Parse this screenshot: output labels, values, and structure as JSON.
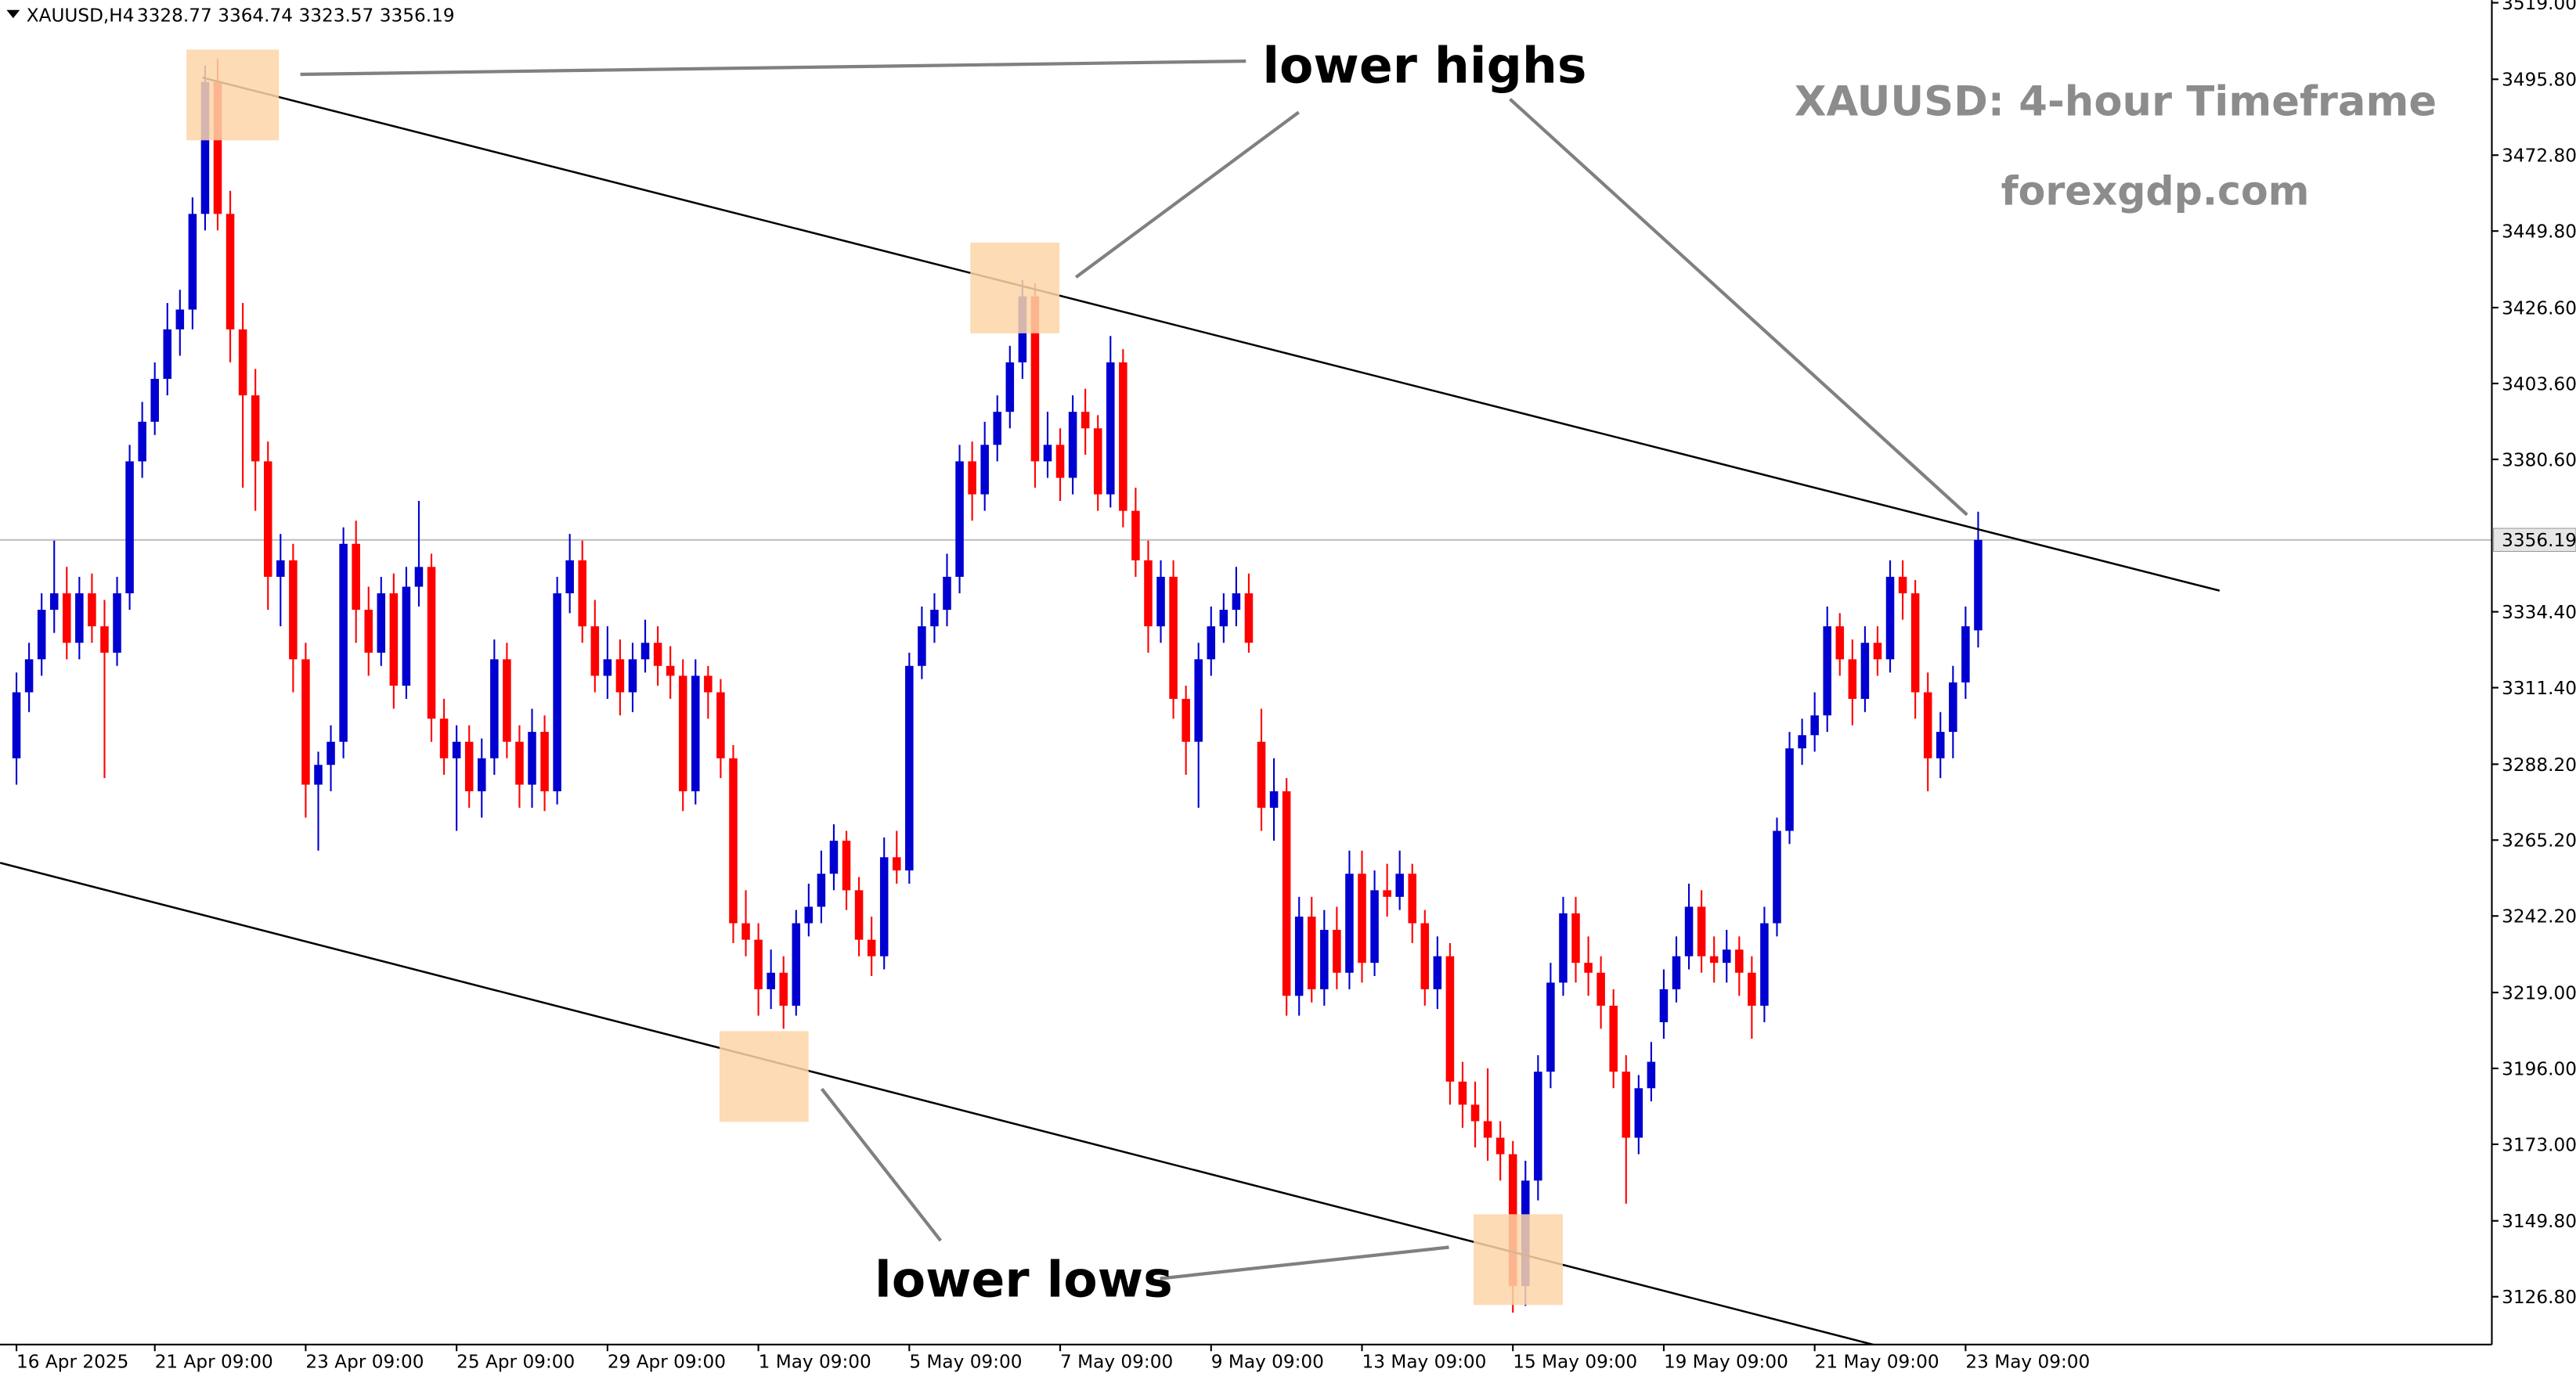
{
  "chart_data": {
    "type": "candlestick",
    "symbol": "XAUUSD,H4",
    "title": "XAUUSD: 4-hour Timeframe",
    "subtitle": "forexgdp.com",
    "annotations": [
      "lower highs",
      "lower lows"
    ],
    "up_color": "#0000d0",
    "down_color": "#ff0000",
    "xlim": [
      -1.31,
      196.85
    ],
    "ylim": [
      3112.3,
      3519.8
    ],
    "xticks": [
      {
        "value": 0,
        "label": "16 Apr 2025"
      },
      {
        "value": 11,
        "label": "21 Apr 09:00"
      },
      {
        "value": 23,
        "label": "23 Apr 09:00"
      },
      {
        "value": 35,
        "label": "25 Apr 09:00"
      },
      {
        "value": 47,
        "label": "29 Apr 09:00"
      },
      {
        "value": 59,
        "label": "1 May 09:00"
      },
      {
        "value": 71,
        "label": "5 May 09:00"
      },
      {
        "value": 83,
        "label": "7 May 09:00"
      },
      {
        "value": 95,
        "label": "9 May 09:00"
      },
      {
        "value": 107,
        "label": "13 May 09:00"
      },
      {
        "value": 119,
        "label": "15 May 09:00"
      },
      {
        "value": 131,
        "label": "19 May 09:00"
      },
      {
        "value": 143,
        "label": "21 May 09:00"
      },
      {
        "value": 155,
        "label": "23 May 09:00"
      }
    ],
    "yticks": [
      {
        "value": 3519,
        "label": "3519.00"
      },
      {
        "value": 3495.8,
        "label": "3495.80"
      },
      {
        "value": 3472.8,
        "label": "3472.80"
      },
      {
        "value": 3449.8,
        "label": "3449.80"
      },
      {
        "value": 3426.6,
        "label": "3426.60"
      },
      {
        "value": 3403.6,
        "label": "3403.60"
      },
      {
        "value": 3380.6,
        "label": "3380.60"
      },
      {
        "value": 3334.4,
        "label": "3334.40"
      },
      {
        "value": 3311.4,
        "label": "3311.40"
      },
      {
        "value": 3288.2,
        "label": "3288.20"
      },
      {
        "value": 3265.2,
        "label": "3265.20"
      },
      {
        "value": 3242.2,
        "label": "3242.20"
      },
      {
        "value": 3219,
        "label": "3219.00"
      },
      {
        "value": 3196,
        "label": "3196.00"
      },
      {
        "value": 3173,
        "label": "3173.00"
      },
      {
        "value": 3149.8,
        "label": "3149.80"
      },
      {
        "value": 3126.8,
        "label": "3126.80"
      }
    ],
    "trendlines": [
      {
        "from": [
          14.8,
          3496.3
        ],
        "to": [
          175.2,
          3340.8
        ]
      },
      {
        "from": [
          -1.3,
          3258.3
        ],
        "to": [
          151.2,
          3108.8
        ]
      }
    ],
    "ohlc": [
      [
        3290,
        3316,
        3282,
        3310
      ],
      [
        3310,
        3325,
        3304,
        3320
      ],
      [
        3320,
        3340,
        3315,
        3335
      ],
      [
        3335,
        3356,
        3328,
        3340
      ],
      [
        3340,
        3348,
        3320,
        3325
      ],
      [
        3325,
        3345,
        3320,
        3340
      ],
      [
        3340,
        3346,
        3325,
        3330
      ],
      [
        3330,
        3338,
        3284,
        3322
      ],
      [
        3322,
        3345,
        3318,
        3340
      ],
      [
        3340,
        3385,
        3335,
        3380
      ],
      [
        3380,
        3398,
        3375,
        3392
      ],
      [
        3392,
        3410,
        3388,
        3405
      ],
      [
        3405,
        3428,
        3400,
        3420
      ],
      [
        3420,
        3432,
        3412,
        3426
      ],
      [
        3426,
        3460,
        3420,
        3455
      ],
      [
        3455,
        3500,
        3450,
        3495
      ],
      [
        3495,
        3502,
        3450,
        3455
      ],
      [
        3455,
        3462,
        3410,
        3420
      ],
      [
        3420,
        3428,
        3372,
        3400
      ],
      [
        3400,
        3408,
        3365,
        3380
      ],
      [
        3380,
        3386,
        3335,
        3345
      ],
      [
        3345,
        3358,
        3330,
        3350
      ],
      [
        3350,
        3355,
        3310,
        3320
      ],
      [
        3320,
        3325,
        3272,
        3282
      ],
      [
        3282,
        3292,
        3262,
        3288
      ],
      [
        3288,
        3300,
        3280,
        3295
      ],
      [
        3295,
        3360,
        3290,
        3355
      ],
      [
        3355,
        3362,
        3325,
        3335
      ],
      [
        3335,
        3342,
        3315,
        3322
      ],
      [
        3322,
        3345,
        3318,
        3340
      ],
      [
        3340,
        3346,
        3305,
        3312
      ],
      [
        3312,
        3348,
        3308,
        3342
      ],
      [
        3342,
        3368,
        3336,
        3348
      ],
      [
        3348,
        3352,
        3295,
        3302
      ],
      [
        3302,
        3308,
        3285,
        3290
      ],
      [
        3290,
        3300,
        3268,
        3295
      ],
      [
        3295,
        3300,
        3275,
        3280
      ],
      [
        3280,
        3296,
        3272,
        3290
      ],
      [
        3290,
        3326,
        3285,
        3320
      ],
      [
        3320,
        3325,
        3290,
        3295
      ],
      [
        3295,
        3300,
        3275,
        3282
      ],
      [
        3282,
        3305,
        3275,
        3298
      ],
      [
        3298,
        3303,
        3274,
        3280
      ],
      [
        3280,
        3345,
        3276,
        3340
      ],
      [
        3340,
        3358,
        3334,
        3350
      ],
      [
        3350,
        3356,
        3325,
        3330
      ],
      [
        3330,
        3338,
        3310,
        3315
      ],
      [
        3315,
        3330,
        3308,
        3320
      ],
      [
        3320,
        3326,
        3303,
        3310
      ],
      [
        3310,
        3325,
        3304,
        3320
      ],
      [
        3320,
        3332,
        3316,
        3325
      ],
      [
        3325,
        3330,
        3312,
        3318
      ],
      [
        3318,
        3324,
        3308,
        3315
      ],
      [
        3315,
        3320,
        3274,
        3280
      ],
      [
        3280,
        3320,
        3276,
        3315
      ],
      [
        3315,
        3318,
        3302,
        3310
      ],
      [
        3310,
        3314,
        3284,
        3290
      ],
      [
        3290,
        3294,
        3234,
        3240
      ],
      [
        3240,
        3250,
        3230,
        3235
      ],
      [
        3235,
        3240,
        3212,
        3220
      ],
      [
        3220,
        3232,
        3214,
        3225
      ],
      [
        3225,
        3230,
        3208,
        3215
      ],
      [
        3215,
        3244,
        3212,
        3240
      ],
      [
        3240,
        3252,
        3236,
        3245
      ],
      [
        3245,
        3262,
        3240,
        3255
      ],
      [
        3255,
        3270,
        3250,
        3265
      ],
      [
        3265,
        3268,
        3244,
        3250
      ],
      [
        3250,
        3254,
        3230,
        3235
      ],
      [
        3235,
        3242,
        3224,
        3230
      ],
      [
        3230,
        3266,
        3226,
        3260
      ],
      [
        3260,
        3268,
        3252,
        3256
      ],
      [
        3256,
        3322,
        3252,
        3318
      ],
      [
        3318,
        3336,
        3314,
        3330
      ],
      [
        3330,
        3340,
        3325,
        3335
      ],
      [
        3335,
        3352,
        3330,
        3345
      ],
      [
        3345,
        3385,
        3340,
        3380
      ],
      [
        3380,
        3386,
        3362,
        3370
      ],
      [
        3370,
        3392,
        3365,
        3385
      ],
      [
        3385,
        3400,
        3380,
        3395
      ],
      [
        3395,
        3415,
        3390,
        3410
      ],
      [
        3410,
        3435,
        3405,
        3430
      ],
      [
        3430,
        3434,
        3372,
        3380
      ],
      [
        3380,
        3395,
        3375,
        3385
      ],
      [
        3385,
        3390,
        3368,
        3375
      ],
      [
        3375,
        3400,
        3370,
        3395
      ],
      [
        3395,
        3402,
        3382,
        3390
      ],
      [
        3390,
        3394,
        3365,
        3370
      ],
      [
        3370,
        3418,
        3366,
        3410
      ],
      [
        3410,
        3414,
        3360,
        3365
      ],
      [
        3365,
        3372,
        3345,
        3350
      ],
      [
        3350,
        3356,
        3322,
        3330
      ],
      [
        3330,
        3350,
        3325,
        3345
      ],
      [
        3345,
        3350,
        3302,
        3308
      ],
      [
        3308,
        3312,
        3285,
        3295
      ],
      [
        3295,
        3325,
        3275,
        3320
      ],
      [
        3320,
        3336,
        3315,
        3330
      ],
      [
        3330,
        3340,
        3325,
        3335
      ],
      [
        3335,
        3348,
        3330,
        3340
      ],
      [
        3340,
        3346,
        3322,
        3325
      ],
      [
        3295,
        3305,
        3268,
        3275
      ],
      [
        3275,
        3290,
        3265,
        3280
      ],
      [
        3280,
        3284,
        3212,
        3218
      ],
      [
        3218,
        3248,
        3212,
        3242
      ],
      [
        3242,
        3248,
        3216,
        3220
      ],
      [
        3220,
        3244,
        3215,
        3238
      ],
      [
        3238,
        3245,
        3220,
        3225
      ],
      [
        3225,
        3262,
        3220,
        3255
      ],
      [
        3255,
        3262,
        3222,
        3228
      ],
      [
        3228,
        3256,
        3224,
        3250
      ],
      [
        3250,
        3258,
        3242,
        3248
      ],
      [
        3248,
        3262,
        3244,
        3255
      ],
      [
        3255,
        3258,
        3234,
        3240
      ],
      [
        3240,
        3244,
        3215,
        3220
      ],
      [
        3220,
        3236,
        3214,
        3230
      ],
      [
        3230,
        3234,
        3185,
        3192
      ],
      [
        3192,
        3198,
        3178,
        3185
      ],
      [
        3185,
        3192,
        3172,
        3180
      ],
      [
        3180,
        3196,
        3168,
        3175
      ],
      [
        3175,
        3180,
        3162,
        3170
      ],
      [
        3170,
        3174,
        3122,
        3130
      ],
      [
        3130,
        3168,
        3124,
        3162
      ],
      [
        3162,
        3200,
        3156,
        3195
      ],
      [
        3195,
        3228,
        3190,
        3222
      ],
      [
        3222,
        3248,
        3218,
        3243
      ],
      [
        3243,
        3248,
        3222,
        3228
      ],
      [
        3228,
        3236,
        3218,
        3225
      ],
      [
        3225,
        3230,
        3208,
        3215
      ],
      [
        3215,
        3220,
        3190,
        3195
      ],
      [
        3195,
        3200,
        3155,
        3175
      ],
      [
        3175,
        3194,
        3170,
        3190
      ],
      [
        3190,
        3204,
        3186,
        3198
      ],
      [
        3210,
        3226,
        3205,
        3220
      ],
      [
        3220,
        3236,
        3216,
        3230
      ],
      [
        3230,
        3252,
        3226,
        3245
      ],
      [
        3245,
        3250,
        3225,
        3230
      ],
      [
        3230,
        3236,
        3222,
        3228
      ],
      [
        3228,
        3238,
        3222,
        3232
      ],
      [
        3232,
        3236,
        3218,
        3225
      ],
      [
        3225,
        3230,
        3205,
        3215
      ],
      [
        3215,
        3245,
        3210,
        3240
      ],
      [
        3240,
        3272,
        3236,
        3268
      ],
      [
        3268,
        3298,
        3264,
        3293
      ],
      [
        3293,
        3302,
        3288,
        3297
      ],
      [
        3297,
        3310,
        3292,
        3303
      ],
      [
        3303,
        3336,
        3298,
        3330
      ],
      [
        3330,
        3334,
        3315,
        3320
      ],
      [
        3320,
        3326,
        3300,
        3308
      ],
      [
        3308,
        3330,
        3304,
        3325
      ],
      [
        3325,
        3330,
        3315,
        3320
      ],
      [
        3320,
        3350,
        3316,
        3345
      ],
      [
        3345,
        3350,
        3332,
        3340
      ],
      [
        3340,
        3344,
        3302,
        3310
      ],
      [
        3310,
        3316,
        3280,
        3290
      ],
      [
        3290,
        3304,
        3284,
        3298
      ],
      [
        3298,
        3318,
        3290,
        3313
      ],
      [
        3313,
        3336,
        3308,
        3330
      ],
      [
        3328.77,
        3364.74,
        3323.57,
        3356.19
      ]
    ]
  }
}
